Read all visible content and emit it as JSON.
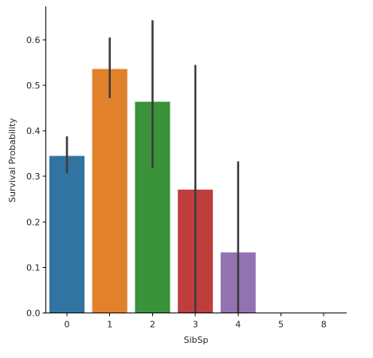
{
  "chart_data": {
    "type": "bar",
    "categories": [
      "0",
      "1",
      "2",
      "3",
      "4",
      "5",
      "8"
    ],
    "values": [
      0.345,
      0.536,
      0.464,
      0.271,
      0.133,
      0.0,
      0.0
    ],
    "error_bars": [
      [
        0.307,
        0.388
      ],
      [
        0.472,
        0.605
      ],
      [
        0.318,
        0.643
      ],
      [
        0.0,
        0.545
      ],
      [
        0.0,
        0.333
      ],
      null,
      null
    ],
    "colors": [
      "#3274a1",
      "#e1812c",
      "#3a923a",
      "#c03d3e",
      "#9372b2",
      "#845b53",
      "#d684bd"
    ],
    "error_color": "#3d3d3d",
    "xlabel": "SibSp",
    "ylabel": "Survival Probability",
    "ylim": [
      0,
      0.68
    ],
    "yticks": [
      0.0,
      0.1,
      0.2,
      0.3,
      0.4,
      0.5,
      0.6
    ],
    "ytick_labels": [
      "0.0",
      "0.1",
      "0.2",
      "0.3",
      "0.4",
      "0.5",
      "0.6"
    ],
    "grid": false
  }
}
